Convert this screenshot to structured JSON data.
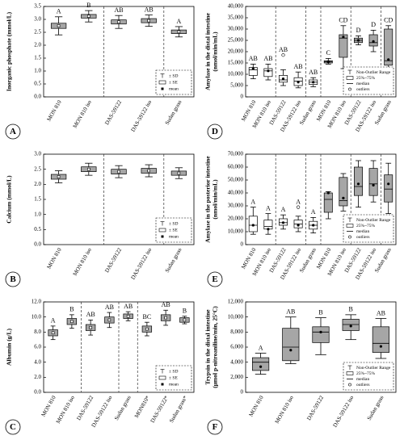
{
  "chart_data": [
    {
      "type": "errorbox",
      "label": "A",
      "ylabel": "Inorganic phosphate (mmol/L)",
      "categories": [
        "MON 810",
        "MON 810 iso",
        "DAS-59122",
        "DAS-59122 iso",
        "Sudan grass"
      ],
      "mean": [
        2.75,
        3.12,
        2.9,
        2.95,
        2.52
      ],
      "se": [
        0.1,
        0.07,
        0.08,
        0.08,
        0.07
      ],
      "sd": [
        0.35,
        0.22,
        0.25,
        0.22,
        0.2
      ],
      "letters": [
        "A",
        "B",
        "AB",
        "AB",
        "A"
      ],
      "color": "#a6a6a6",
      "ylim": [
        0,
        3.5
      ],
      "yticks": [
        {
          "value": 0,
          "label": "0.0"
        },
        {
          "value": 0.5,
          "label": "0.5"
        },
        {
          "value": 1,
          "label": "1.0"
        },
        {
          "value": 1.5,
          "label": "1.5"
        },
        {
          "value": 2,
          "label": "2.0"
        },
        {
          "value": 2.5,
          "label": "2.5"
        },
        {
          "value": 3,
          "label": "3.0"
        },
        {
          "value": 3.5,
          "label": "3.5"
        }
      ],
      "legend": [
        "± SD",
        "± SE",
        "mean"
      ]
    },
    {
      "type": "errorbox",
      "label": "B",
      "ylabel": "Calcium (mmol/L)",
      "categories": [
        "MON 810",
        "MON 810 iso",
        "DAS-59122",
        "DAS-59122 iso",
        "Sudan grass"
      ],
      "mean": [
        2.25,
        2.5,
        2.42,
        2.45,
        2.37
      ],
      "se": [
        0.08,
        0.08,
        0.08,
        0.08,
        0.07
      ],
      "sd": [
        0.2,
        0.2,
        0.2,
        0.2,
        0.18
      ],
      "color": "#a6a6a6",
      "ylim": [
        0,
        3
      ],
      "yticks": [
        {
          "value": 0,
          "label": "0.0"
        },
        {
          "value": 0.5,
          "label": "0.5"
        },
        {
          "value": 1,
          "label": "1.0"
        },
        {
          "value": 1.5,
          "label": "1.5"
        },
        {
          "value": 2,
          "label": "2.0"
        },
        {
          "value": 2.5,
          "label": "2.5"
        },
        {
          "value": 3,
          "label": "3.0"
        }
      ],
      "legend": [
        "± SD",
        "± SE",
        "mean"
      ]
    },
    {
      "type": "errorbox",
      "label": "C",
      "ylabel": "Albumin (g/L)",
      "categories": [
        "MON 810",
        "MON 810 iso",
        "DAS-59122",
        "DAS-59122 iso",
        "Sudan grass",
        "MON810*",
        "DAS-59122*",
        "Sudan grass*"
      ],
      "mean": [
        7.9,
        9.4,
        8.6,
        9.6,
        10.1,
        8.4,
        9.9,
        9.6
      ],
      "se": [
        0.4,
        0.4,
        0.4,
        0.4,
        0.3,
        0.4,
        0.4,
        0.3
      ],
      "sd": [
        0.9,
        0.9,
        1.0,
        1.0,
        0.6,
        0.9,
        1.0,
        0.5
      ],
      "letters": [
        "A",
        "B",
        "AB",
        "AB",
        "AB",
        "BC",
        "AB",
        "B"
      ],
      "color": "#a6a6a6",
      "ylim": [
        0,
        12
      ],
      "yticks": [
        {
          "value": 0,
          "label": "0.0"
        },
        {
          "value": 2,
          "label": "2.0"
        },
        {
          "value": 4,
          "label": "4.0"
        },
        {
          "value": 6,
          "label": "6.0"
        },
        {
          "value": 8,
          "label": "8.0"
        },
        {
          "value": 10,
          "label": "10.0"
        },
        {
          "value": 12,
          "label": "12.0"
        }
      ],
      "legend": [
        "± SD",
        "± SE",
        "mean"
      ]
    },
    {
      "type": "box",
      "label": "D",
      "ylabel": [
        "Amylase in the distal intestine",
        "(nmol/min/mL)"
      ],
      "categories": [
        "MON 810",
        "MON 810 iso",
        "DAS-59122",
        "DAS-59122 iso",
        "Sudan grass",
        "MON 810",
        "MON 810 iso",
        "DAS-59122",
        "DAS-59122 iso",
        "Sudan grass"
      ],
      "min": [
        8000,
        7500,
        5000,
        4000,
        4500,
        14500,
        12500,
        23000,
        20000,
        12500
      ],
      "q1": [
        9500,
        9000,
        6500,
        5000,
        5500,
        15000,
        17500,
        24000,
        22500,
        14000
      ],
      "median": [
        12000,
        11500,
        7500,
        7000,
        6500,
        15500,
        26000,
        25000,
        24000,
        16000
      ],
      "q3": [
        13000,
        12500,
        9500,
        8500,
        7500,
        16000,
        27500,
        26000,
        27500,
        30000
      ],
      "max": [
        14500,
        14500,
        12000,
        11000,
        8500,
        17000,
        31500,
        27000,
        29500,
        31500
      ],
      "mean": [
        12500,
        11500,
        8000,
        6500,
        6500,
        15500,
        26500,
        25000,
        24500,
        16500
      ],
      "outliers": [
        [],
        [],
        [
          18500
        ],
        [],
        [],
        [],
        [],
        [],
        [],
        []
      ],
      "letters": [
        "AB",
        "AB",
        "AB",
        "AB",
        "AB",
        "C",
        "CD",
        "D",
        "D",
        "CD"
      ],
      "colors": [
        "#ffffff",
        "#ffffff",
        "#ffffff",
        "#ffffff",
        "#ffffff",
        "#a6a6a6",
        "#a6a6a6",
        "#a6a6a6",
        "#a6a6a6",
        "#a6a6a6"
      ],
      "ylim": [
        0,
        40000
      ],
      "yticks": [
        0,
        {
          "value": 5000,
          "label": "5,000"
        },
        {
          "value": 10000,
          "label": "10,000"
        },
        {
          "value": 15000,
          "label": "15,000"
        },
        {
          "value": 20000,
          "label": "20,000"
        },
        {
          "value": 25000,
          "label": "25,000"
        },
        {
          "value": 30000,
          "label": "30,000"
        },
        {
          "value": 35000,
          "label": "35,000"
        },
        {
          "value": 40000,
          "label": "40,000"
        }
      ],
      "legend": [
        "Non-Outlier Range",
        "25%~75%",
        "median",
        "outliers"
      ]
    },
    {
      "type": "box",
      "label": "E",
      "ylabel": [
        "Amylase in the posterior intestine",
        "(nmol/min/mL)"
      ],
      "categories": [
        "MON 810",
        "MON 810 iso",
        "DAS-59122",
        "DAS-59122 iso",
        "Sudan grass",
        "MON 810",
        "MON 810 iso",
        "DAS-59122",
        "DAS-59122 iso",
        "Sudan grass"
      ],
      "min": [
        8000,
        8000,
        12000,
        10000,
        9000,
        20000,
        26000,
        29000,
        33000,
        24000
      ],
      "q1": [
        10000,
        12000,
        15000,
        13000,
        12000,
        25000,
        30000,
        38000,
        38000,
        33000
      ],
      "median": [
        15000,
        14000,
        17000,
        16000,
        15000,
        35000,
        34000,
        45000,
        47000,
        43000
      ],
      "q3": [
        22000,
        19000,
        20000,
        19000,
        18000,
        40000,
        52000,
        60000,
        59000,
        54000
      ],
      "max": [
        29000,
        24000,
        23000,
        22000,
        21000,
        41000,
        55000,
        65000,
        65000,
        63000
      ],
      "mean": [
        15000,
        12000,
        17000,
        15000,
        15000,
        40000,
        36000,
        47000,
        46000,
        47000
      ],
      "outliers": [
        [],
        [],
        [],
        [
          29000
        ],
        [],
        [],
        [],
        [],
        [],
        []
      ],
      "letters": [
        "A",
        "A",
        "A",
        "A",
        "A",
        null,
        null,
        null,
        null,
        null
      ],
      "colors": [
        "#ffffff",
        "#ffffff",
        "#ffffff",
        "#ffffff",
        "#ffffff",
        "#a6a6a6",
        "#a6a6a6",
        "#a6a6a6",
        "#a6a6a6",
        "#a6a6a6"
      ],
      "ylim": [
        0,
        70000
      ],
      "yticks": [
        0,
        {
          "value": 10000,
          "label": "10,000"
        },
        {
          "value": 20000,
          "label": "20,000"
        },
        {
          "value": 30000,
          "label": "30,000"
        },
        {
          "value": 40000,
          "label": "40,000"
        },
        {
          "value": 50000,
          "label": "50,000"
        },
        {
          "value": 60000,
          "label": "60,000"
        },
        {
          "value": 70000,
          "label": "70,000"
        }
      ],
      "legend": [
        "Non-Outlier Range",
        "25%~75%",
        "median",
        "outliers"
      ]
    },
    {
      "type": "box",
      "label": "F",
      "ylabel": [
        "Trypsin in the distal intestine",
        "(μmol p-nitroaniline/min, 25°C)"
      ],
      "categories": [
        "MON 810",
        "MON 810 iso",
        "DAS-59122",
        "DAS-59122 iso",
        "Sudan grass"
      ],
      "min": [
        2400,
        3800,
        5000,
        7000,
        4500
      ],
      "q1": [
        2900,
        4200,
        6600,
        8200,
        5300
      ],
      "median": [
        4000,
        6000,
        8000,
        9000,
        6500
      ],
      "q3": [
        4600,
        8500,
        8700,
        9700,
        8700
      ],
      "max": [
        5200,
        10000,
        9900,
        10300,
        9800
      ],
      "mean": [
        3400,
        5600,
        8000,
        8800,
        6100
      ],
      "letters": [
        "A",
        "AB",
        "B",
        "B",
        "AB"
      ],
      "colors": [
        "#a6a6a6",
        "#a6a6a6",
        "#a6a6a6",
        "#a6a6a6",
        "#a6a6a6"
      ],
      "ylim": [
        0,
        12000
      ],
      "yticks": [
        0,
        {
          "value": 2000,
          "label": "2,000"
        },
        {
          "value": 4000,
          "label": "4,000"
        },
        {
          "value": 6000,
          "label": "6,000"
        },
        {
          "value": 8000,
          "label": "8,000"
        },
        {
          "value": 10000,
          "label": "10,000"
        },
        {
          "value": 12000,
          "label": "12,000"
        }
      ],
      "legend": [
        "Non-Outlier Range",
        "25%~75%",
        "median",
        "outliers"
      ]
    }
  ]
}
